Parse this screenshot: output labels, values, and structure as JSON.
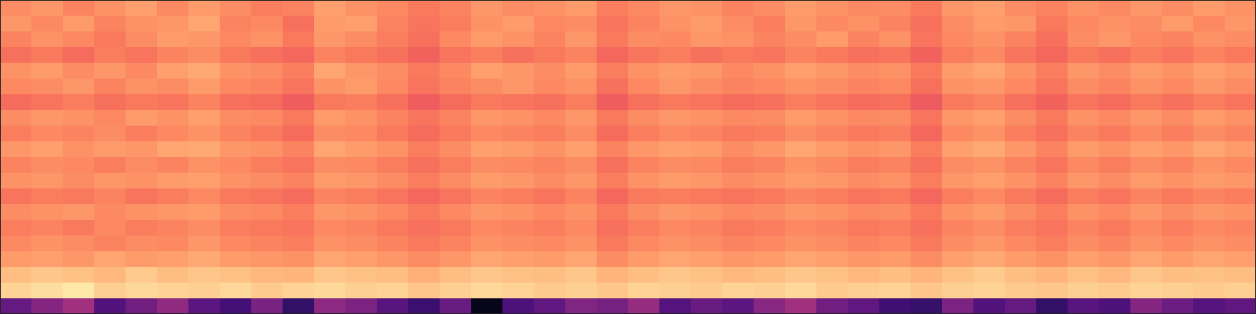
{
  "chart_data": {
    "type": "heatmap",
    "color": "magma",
    "tick_labels": false,
    "zlim": [
      0,
      1
    ],
    "values": [
      [
        0.76,
        0.78,
        0.74,
        0.77,
        0.8,
        0.75,
        0.79,
        0.76,
        0.73,
        0.74,
        0.8,
        0.77,
        0.75,
        0.72,
        0.74,
        0.78,
        0.76,
        0.77,
        0.79,
        0.73,
        0.75,
        0.78,
        0.77,
        0.74,
        0.76,
        0.79,
        0.77,
        0.75,
        0.76,
        0.72,
        0.78,
        0.8,
        0.76,
        0.74,
        0.77,
        0.75,
        0.78,
        0.76,
        0.79,
        0.77
      ],
      [
        0.78,
        0.75,
        0.79,
        0.74,
        0.77,
        0.78,
        0.81,
        0.74,
        0.75,
        0.7,
        0.79,
        0.8,
        0.74,
        0.71,
        0.73,
        0.77,
        0.79,
        0.75,
        0.76,
        0.71,
        0.74,
        0.77,
        0.79,
        0.76,
        0.73,
        0.78,
        0.75,
        0.77,
        0.74,
        0.7,
        0.76,
        0.79,
        0.78,
        0.72,
        0.75,
        0.77,
        0.76,
        0.79,
        0.75,
        0.78
      ],
      [
        0.74,
        0.77,
        0.75,
        0.72,
        0.76,
        0.79,
        0.78,
        0.75,
        0.77,
        0.72,
        0.78,
        0.76,
        0.73,
        0.7,
        0.75,
        0.79,
        0.77,
        0.74,
        0.78,
        0.72,
        0.76,
        0.75,
        0.78,
        0.77,
        0.74,
        0.76,
        0.79,
        0.74,
        0.77,
        0.71,
        0.75,
        0.77,
        0.74,
        0.7,
        0.76,
        0.78,
        0.75,
        0.74,
        0.77,
        0.76
      ],
      [
        0.7,
        0.72,
        0.69,
        0.73,
        0.71,
        0.74,
        0.76,
        0.72,
        0.7,
        0.68,
        0.74,
        0.72,
        0.7,
        0.67,
        0.71,
        0.73,
        0.7,
        0.72,
        0.74,
        0.68,
        0.71,
        0.73,
        0.7,
        0.72,
        0.71,
        0.74,
        0.72,
        0.7,
        0.71,
        0.67,
        0.73,
        0.75,
        0.71,
        0.68,
        0.72,
        0.7,
        0.73,
        0.71,
        0.74,
        0.72
      ],
      [
        0.77,
        0.79,
        0.76,
        0.78,
        0.75,
        0.8,
        0.82,
        0.77,
        0.76,
        0.73,
        0.81,
        0.78,
        0.76,
        0.72,
        0.75,
        0.8,
        0.78,
        0.76,
        0.79,
        0.73,
        0.77,
        0.79,
        0.78,
        0.75,
        0.77,
        0.8,
        0.78,
        0.76,
        0.77,
        0.72,
        0.79,
        0.81,
        0.77,
        0.73,
        0.78,
        0.76,
        0.79,
        0.77,
        0.8,
        0.78
      ],
      [
        0.75,
        0.76,
        0.78,
        0.74,
        0.77,
        0.76,
        0.79,
        0.75,
        0.74,
        0.71,
        0.77,
        0.79,
        0.75,
        0.71,
        0.74,
        0.76,
        0.78,
        0.75,
        0.77,
        0.7,
        0.75,
        0.78,
        0.76,
        0.74,
        0.75,
        0.77,
        0.76,
        0.74,
        0.75,
        0.7,
        0.77,
        0.78,
        0.75,
        0.71,
        0.76,
        0.74,
        0.77,
        0.75,
        0.78,
        0.76
      ],
      [
        0.69,
        0.71,
        0.73,
        0.7,
        0.72,
        0.71,
        0.74,
        0.7,
        0.69,
        0.66,
        0.72,
        0.73,
        0.7,
        0.66,
        0.69,
        0.72,
        0.71,
        0.7,
        0.73,
        0.66,
        0.7,
        0.72,
        0.71,
        0.69,
        0.7,
        0.73,
        0.71,
        0.69,
        0.7,
        0.65,
        0.72,
        0.74,
        0.7,
        0.67,
        0.71,
        0.69,
        0.72,
        0.7,
        0.73,
        0.71
      ],
      [
        0.76,
        0.78,
        0.77,
        0.75,
        0.79,
        0.77,
        0.8,
        0.76,
        0.75,
        0.72,
        0.79,
        0.77,
        0.74,
        0.71,
        0.74,
        0.78,
        0.77,
        0.75,
        0.78,
        0.72,
        0.76,
        0.78,
        0.77,
        0.75,
        0.76,
        0.79,
        0.77,
        0.75,
        0.76,
        0.71,
        0.78,
        0.8,
        0.76,
        0.72,
        0.77,
        0.75,
        0.78,
        0.76,
        0.79,
        0.77
      ],
      [
        0.73,
        0.75,
        0.74,
        0.76,
        0.73,
        0.75,
        0.77,
        0.74,
        0.72,
        0.69,
        0.76,
        0.75,
        0.72,
        0.69,
        0.72,
        0.75,
        0.74,
        0.73,
        0.76,
        0.69,
        0.73,
        0.75,
        0.74,
        0.72,
        0.73,
        0.76,
        0.74,
        0.72,
        0.73,
        0.68,
        0.75,
        0.77,
        0.73,
        0.7,
        0.74,
        0.72,
        0.75,
        0.73,
        0.76,
        0.74
      ],
      [
        0.78,
        0.8,
        0.77,
        0.79,
        0.78,
        0.81,
        0.82,
        0.78,
        0.77,
        0.74,
        0.81,
        0.79,
        0.77,
        0.73,
        0.76,
        0.8,
        0.79,
        0.77,
        0.8,
        0.74,
        0.78,
        0.8,
        0.79,
        0.76,
        0.78,
        0.81,
        0.79,
        0.77,
        0.78,
        0.73,
        0.8,
        0.82,
        0.78,
        0.74,
        0.79,
        0.77,
        0.8,
        0.78,
        0.81,
        0.79
      ],
      [
        0.74,
        0.76,
        0.75,
        0.73,
        0.76,
        0.74,
        0.77,
        0.75,
        0.73,
        0.71,
        0.76,
        0.75,
        0.73,
        0.7,
        0.73,
        0.76,
        0.75,
        0.74,
        0.76,
        0.7,
        0.74,
        0.76,
        0.75,
        0.73,
        0.74,
        0.77,
        0.75,
        0.73,
        0.74,
        0.7,
        0.76,
        0.77,
        0.74,
        0.71,
        0.75,
        0.73,
        0.76,
        0.74,
        0.77,
        0.75
      ],
      [
        0.77,
        0.78,
        0.76,
        0.78,
        0.77,
        0.79,
        0.8,
        0.77,
        0.76,
        0.74,
        0.79,
        0.78,
        0.76,
        0.73,
        0.76,
        0.79,
        0.78,
        0.76,
        0.78,
        0.73,
        0.77,
        0.79,
        0.78,
        0.76,
        0.77,
        0.79,
        0.78,
        0.76,
        0.77,
        0.73,
        0.78,
        0.8,
        0.77,
        0.74,
        0.78,
        0.76,
        0.79,
        0.77,
        0.79,
        0.78
      ],
      [
        0.71,
        0.73,
        0.72,
        0.74,
        0.71,
        0.73,
        0.75,
        0.72,
        0.71,
        0.69,
        0.74,
        0.73,
        0.71,
        0.68,
        0.71,
        0.74,
        0.73,
        0.71,
        0.74,
        0.68,
        0.72,
        0.73,
        0.72,
        0.71,
        0.72,
        0.74,
        0.73,
        0.71,
        0.72,
        0.68,
        0.73,
        0.75,
        0.72,
        0.69,
        0.73,
        0.71,
        0.74,
        0.72,
        0.74,
        0.73
      ],
      [
        0.76,
        0.77,
        0.78,
        0.75,
        0.77,
        0.78,
        0.79,
        0.76,
        0.75,
        0.73,
        0.78,
        0.77,
        0.75,
        0.72,
        0.75,
        0.78,
        0.77,
        0.75,
        0.77,
        0.72,
        0.76,
        0.78,
        0.77,
        0.75,
        0.76,
        0.78,
        0.77,
        0.75,
        0.76,
        0.72,
        0.77,
        0.79,
        0.76,
        0.73,
        0.77,
        0.75,
        0.78,
        0.76,
        0.78,
        0.77
      ],
      [
        0.73,
        0.74,
        0.72,
        0.75,
        0.73,
        0.74,
        0.76,
        0.73,
        0.72,
        0.71,
        0.75,
        0.74,
        0.72,
        0.7,
        0.72,
        0.75,
        0.74,
        0.73,
        0.75,
        0.7,
        0.73,
        0.75,
        0.74,
        0.72,
        0.73,
        0.75,
        0.74,
        0.72,
        0.73,
        0.7,
        0.74,
        0.76,
        0.73,
        0.71,
        0.74,
        0.72,
        0.75,
        0.73,
        0.75,
        0.74
      ],
      [
        0.75,
        0.77,
        0.76,
        0.74,
        0.76,
        0.75,
        0.78,
        0.75,
        0.74,
        0.73,
        0.77,
        0.76,
        0.74,
        0.72,
        0.74,
        0.77,
        0.76,
        0.75,
        0.77,
        0.72,
        0.75,
        0.77,
        0.76,
        0.74,
        0.75,
        0.77,
        0.76,
        0.74,
        0.75,
        0.72,
        0.76,
        0.78,
        0.75,
        0.73,
        0.76,
        0.74,
        0.77,
        0.75,
        0.77,
        0.76
      ],
      [
        0.79,
        0.8,
        0.78,
        0.81,
        0.79,
        0.8,
        0.82,
        0.79,
        0.78,
        0.77,
        0.81,
        0.8,
        0.78,
        0.76,
        0.78,
        0.81,
        0.8,
        0.79,
        0.81,
        0.76,
        0.79,
        0.81,
        0.8,
        0.78,
        0.79,
        0.81,
        0.8,
        0.78,
        0.79,
        0.76,
        0.8,
        0.82,
        0.79,
        0.77,
        0.8,
        0.78,
        0.81,
        0.79,
        0.81,
        0.8
      ],
      [
        0.86,
        0.88,
        0.87,
        0.85,
        0.89,
        0.86,
        0.88,
        0.87,
        0.85,
        0.84,
        0.88,
        0.87,
        0.86,
        0.83,
        0.86,
        0.88,
        0.87,
        0.86,
        0.88,
        0.84,
        0.86,
        0.88,
        0.87,
        0.85,
        0.86,
        0.88,
        0.87,
        0.85,
        0.86,
        0.84,
        0.87,
        0.89,
        0.86,
        0.84,
        0.87,
        0.85,
        0.88,
        0.86,
        0.87,
        0.86
      ],
      [
        0.91,
        0.93,
        0.95,
        0.9,
        0.92,
        0.91,
        0.9,
        0.92,
        0.89,
        0.91,
        0.92,
        0.9,
        0.91,
        0.88,
        0.9,
        0.92,
        0.91,
        0.89,
        0.9,
        0.88,
        0.91,
        0.9,
        0.89,
        0.91,
        0.9,
        0.92,
        0.89,
        0.9,
        0.91,
        0.88,
        0.9,
        0.91,
        0.89,
        0.88,
        0.9,
        0.89,
        0.91,
        0.9,
        0.89,
        0.9
      ],
      [
        0.3,
        0.38,
        0.45,
        0.25,
        0.33,
        0.41,
        0.28,
        0.22,
        0.35,
        0.18,
        0.4,
        0.36,
        0.27,
        0.2,
        0.31,
        0.05,
        0.24,
        0.29,
        0.37,
        0.34,
        0.42,
        0.26,
        0.31,
        0.28,
        0.39,
        0.45,
        0.33,
        0.29,
        0.21,
        0.19,
        0.36,
        0.25,
        0.3,
        0.18,
        0.27,
        0.24,
        0.38,
        0.32,
        0.26,
        0.29
      ]
    ]
  }
}
